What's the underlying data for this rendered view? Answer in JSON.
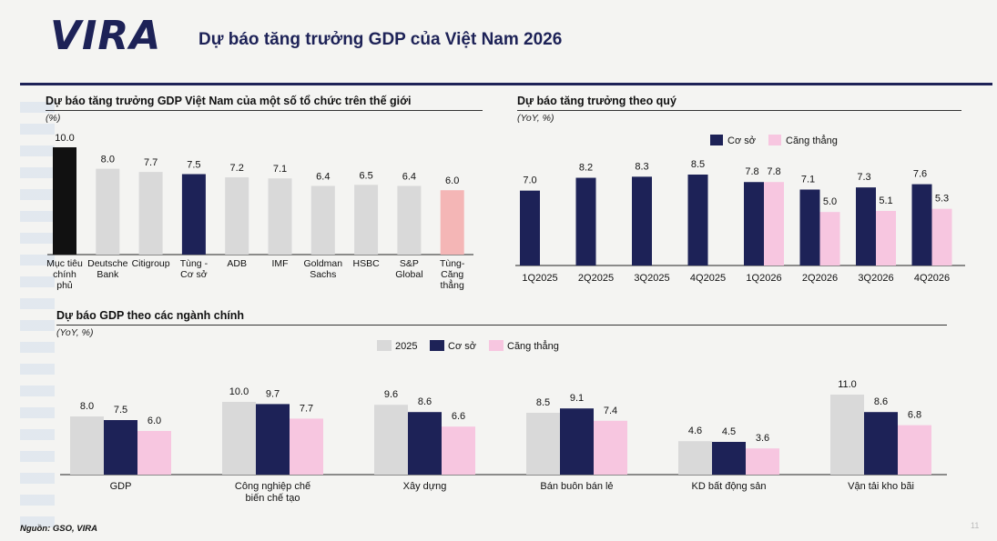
{
  "header": {
    "logo": "VIRA",
    "title": "Dự báo tăng trưởng GDP của Việt Nam 2026"
  },
  "footer": {
    "source": "Nguồn: GSO, VIRA",
    "page": "11"
  },
  "chart_data": [
    {
      "type": "bar",
      "title": "Dự báo tăng trưởng GDP Việt Nam của một số tổ chức trên thế giới",
      "unit": "(%)",
      "categories": [
        [
          "Mục tiêu",
          "chính",
          "phủ"
        ],
        [
          "Deutsche",
          "Bank"
        ],
        [
          "Citigroup"
        ],
        [
          "Tùng -",
          "Cơ sở"
        ],
        [
          "ADB"
        ],
        [
          "IMF"
        ],
        [
          "Goldman",
          "Sachs"
        ],
        [
          "HSBC"
        ],
        [
          "S&P",
          "Global"
        ],
        [
          "Tùng-",
          "Căng",
          "thẳng"
        ]
      ],
      "values": [
        10.0,
        8.0,
        7.7,
        7.5,
        7.2,
        7.1,
        6.4,
        6.5,
        6.4,
        6.0
      ],
      "bar_colors": [
        "#111111",
        "#d9d9d9",
        "#d9d9d9",
        "#1d2257",
        "#d9d9d9",
        "#d9d9d9",
        "#d9d9d9",
        "#d9d9d9",
        "#d9d9d9",
        "#f4b6b6"
      ],
      "ylim": [
        0,
        10.0
      ]
    },
    {
      "type": "bar",
      "title": "Dự báo tăng trưởng theo quý",
      "unit": "(YoY, %)",
      "categories": [
        "1Q2025",
        "2Q2025",
        "3Q2025",
        "4Q2025",
        "1Q2026",
        "2Q2026",
        "3Q2026",
        "4Q2026"
      ],
      "series": [
        {
          "name": "Cơ sở",
          "color": "#1d2257",
          "values": [
            7.0,
            8.2,
            8.3,
            8.5,
            7.8,
            7.1,
            7.3,
            7.6
          ]
        },
        {
          "name": "Căng thẳng",
          "color": "#f7c6e0",
          "values": [
            null,
            null,
            null,
            null,
            7.8,
            5.0,
            5.1,
            5.3
          ]
        }
      ],
      "legend": "top-right",
      "ylim": [
        0,
        8.5
      ]
    },
    {
      "type": "bar",
      "title": "Dự báo GDP theo các ngành chính",
      "unit": "(YoY, %)",
      "categories": [
        [
          "GDP"
        ],
        [
          "Công nghiệp chế",
          "biến chế tạo"
        ],
        [
          "Xây dựng"
        ],
        [
          "Bán buôn bán lẻ"
        ],
        [
          "KD bất động sản"
        ],
        [
          "Vận tải kho bãi"
        ]
      ],
      "series": [
        {
          "name": "2025",
          "color": "#d9d9d9",
          "values": [
            8.0,
            10.0,
            9.6,
            8.5,
            4.6,
            11.0
          ]
        },
        {
          "name": "Cơ sở",
          "color": "#1d2257",
          "values": [
            7.5,
            9.7,
            8.6,
            9.1,
            4.5,
            8.6
          ]
        },
        {
          "name": "Căng thẳng",
          "color": "#f7c6e0",
          "values": [
            6.0,
            7.7,
            6.6,
            7.4,
            3.6,
            6.8
          ]
        }
      ],
      "legend": "top-center",
      "ylim": [
        0,
        11.0
      ]
    }
  ]
}
